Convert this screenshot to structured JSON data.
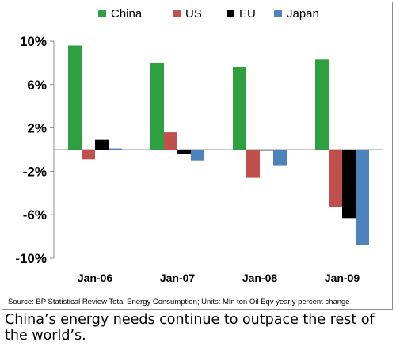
{
  "chart_data": {
    "type": "bar",
    "categories": [
      "Jan-06",
      "Jan-07",
      "Jan-08",
      "Jan-09"
    ],
    "series": [
      {
        "name": "China",
        "color": "#2ea040",
        "values": [
          9.6,
          8.0,
          7.6,
          8.3
        ]
      },
      {
        "name": "US",
        "color": "#c0504d",
        "values": [
          -0.9,
          1.6,
          -2.6,
          -5.3
        ]
      },
      {
        "name": "EU",
        "color": "#000000",
        "values": [
          0.9,
          -0.4,
          -0.1,
          -6.3
        ]
      },
      {
        "name": "Japan",
        "color": "#4f81bd",
        "values": [
          0.1,
          -1.0,
          -1.5,
          -8.8
        ]
      }
    ],
    "yticks": [
      "10%",
      "6%",
      "2%",
      "-2%",
      "-6%",
      "-10%"
    ],
    "ylim": [
      -10,
      10
    ],
    "ytick_values": [
      10,
      6,
      2,
      -2,
      -6,
      -10
    ],
    "legend_position": "top",
    "grid": false
  },
  "source_note": "Source: BP Statistical Review Total Energy Consumption; Units:  Mln ton Oil Eqv yearly percent change",
  "caption": "China’s energy needs continue to outpace the rest of the world’s."
}
